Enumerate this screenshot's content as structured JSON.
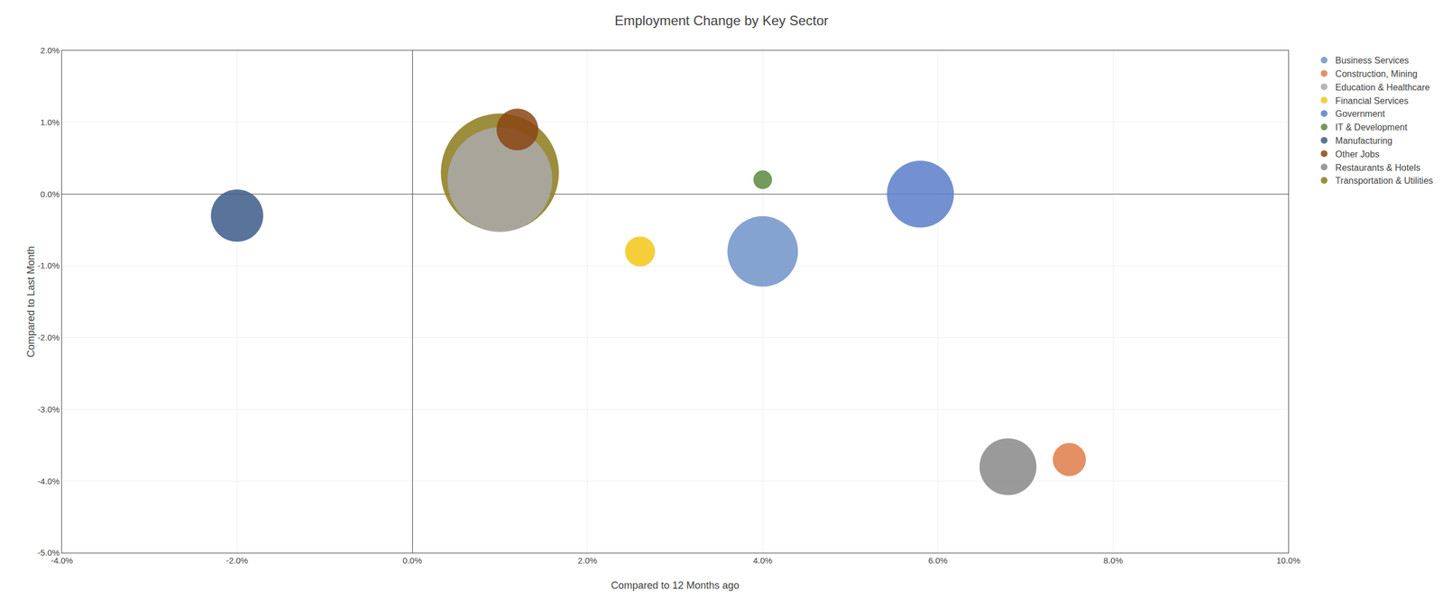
{
  "chart_data": {
    "type": "bubble",
    "title": "Employment Change by Key Sector",
    "xlabel": "Compared to 12 Months ago",
    "ylabel": "Compared to Last Month",
    "xlim": [
      -0.04,
      0.1
    ],
    "ylim": [
      -0.05,
      0.02
    ],
    "xticks": [
      {
        "value": -0.04,
        "label": "-4.0%"
      },
      {
        "value": -0.02,
        "label": "-2.0%"
      },
      {
        "value": 0.0,
        "label": "0.0%"
      },
      {
        "value": 0.02,
        "label": "2.0%"
      },
      {
        "value": 0.04,
        "label": "4.0%"
      },
      {
        "value": 0.06,
        "label": "6.0%"
      },
      {
        "value": 0.08,
        "label": "8.0%"
      },
      {
        "value": 0.1,
        "label": "10.0%"
      }
    ],
    "yticks": [
      {
        "value": -0.05,
        "label": "-5.0%"
      },
      {
        "value": -0.04,
        "label": "-4.0%"
      },
      {
        "value": -0.03,
        "label": "-3.0%"
      },
      {
        "value": -0.02,
        "label": "-2.0%"
      },
      {
        "value": -0.01,
        "label": "-1.0%"
      },
      {
        "value": 0.0,
        "label": "0.0%"
      },
      {
        "value": 0.01,
        "label": "1.0%"
      },
      {
        "value": 0.02,
        "label": "2.0%"
      }
    ],
    "grid": true,
    "legend": "right",
    "series": [
      {
        "name": "Transportation & Utilities",
        "color": "#8B7A1A",
        "x": [
          0.01
        ],
        "y": [
          0.003
        ],
        "size": [
          28000
        ]
      },
      {
        "name": "Education & Healthcare",
        "color": "#AAAAAA",
        "x": [
          0.01
        ],
        "y": [
          0.002
        ],
        "size": [
          22000
        ]
      },
      {
        "name": "Other Jobs",
        "color": "#8B4513",
        "x": [
          0.012
        ],
        "y": [
          0.009
        ],
        "size": [
          3500
        ]
      },
      {
        "name": "Manufacturing",
        "color": "#3D5A8A",
        "x": [
          -0.02
        ],
        "y": [
          -0.003
        ],
        "size": [
          5500
        ]
      },
      {
        "name": "Financial Services",
        "color": "#F5C518",
        "x": [
          0.026
        ],
        "y": [
          -0.008
        ],
        "size": [
          1800
        ]
      },
      {
        "name": "Business Services",
        "color": "#7093C8",
        "x": [
          0.04
        ],
        "y": [
          -0.008
        ],
        "size": [
          10000
        ]
      },
      {
        "name": "IT & Development",
        "color": "#5B8A3E",
        "x": [
          0.04
        ],
        "y": [
          0.002
        ],
        "size": [
          700
        ]
      },
      {
        "name": "Government",
        "color": "#5B7EC9",
        "x": [
          0.058
        ],
        "y": [
          0.0
        ],
        "size": [
          9000
        ]
      },
      {
        "name": "Restaurants & Hotels",
        "color": "#888888",
        "x": [
          0.068
        ],
        "y": [
          -0.038
        ],
        "size": [
          6500
        ]
      },
      {
        "name": "Construction, Mining",
        "color": "#E07B4A",
        "x": [
          0.075
        ],
        "y": [
          -0.037
        ],
        "size": [
          2200
        ]
      }
    ]
  }
}
